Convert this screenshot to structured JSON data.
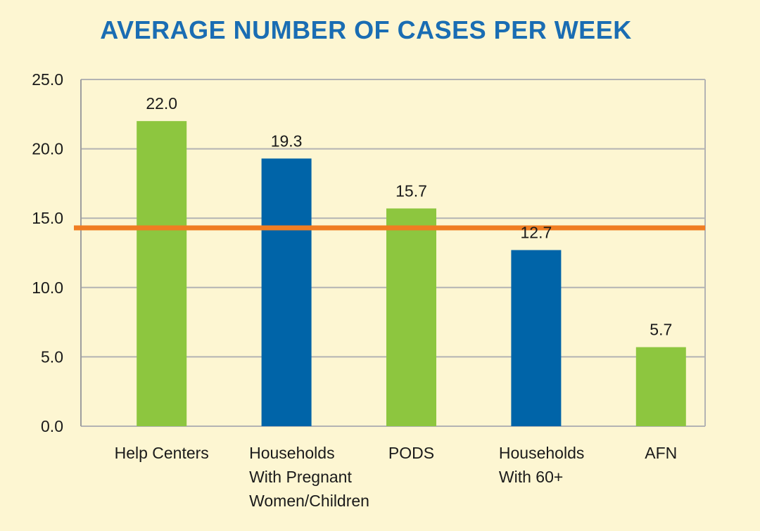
{
  "chart_data": {
    "type": "bar",
    "title": "AVERAGE NUMBER OF CASES PER WEEK",
    "categories": [
      [
        "Help Centers"
      ],
      [
        "Households",
        "With Pregnant",
        "Women/Children"
      ],
      [
        "PODS"
      ],
      [
        "Households",
        "With 60+"
      ],
      [
        "AFN"
      ]
    ],
    "values": [
      22.0,
      19.3,
      15.7,
      12.7,
      5.7
    ],
    "value_labels": [
      "22.0",
      "19.3",
      "15.7",
      "12.7",
      "5.7"
    ],
    "bar_colors": [
      "#8dc63f",
      "#0064a8",
      "#8dc63f",
      "#0064a8",
      "#8dc63f"
    ],
    "ylim": [
      0,
      25
    ],
    "yticks": [
      0,
      5,
      10,
      15,
      20,
      25
    ],
    "ytick_labels": [
      "0.0",
      "5.0",
      "10.0",
      "15.0",
      "20.0",
      "25.0"
    ],
    "reference_line": {
      "value": 14.3,
      "color": "#f07d22"
    },
    "grid": true,
    "xlabel": "",
    "ylabel": ""
  },
  "colors": {
    "background": "#fdf6d2",
    "title": "#1a6db3",
    "grid": "#b3b3b3",
    "axis": "#9e9e9e"
  }
}
